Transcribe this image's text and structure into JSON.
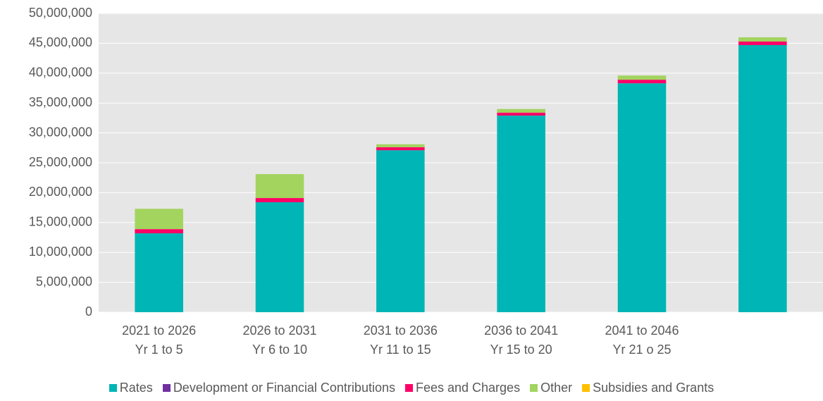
{
  "chart_data": {
    "type": "stacked_bar",
    "categories": [
      "2021 to 2026\nYr 1 to 5",
      "2026 to 2031\nYr 6 to 10",
      "2031 to 2036\nYr 11 to 15",
      "2036 to 2041\nYr 15 to 20",
      "2041 to 2046\nYr 21 o 25",
      null
    ],
    "series": [
      {
        "name": "Rates",
        "color": "#00b5b5",
        "values": [
          13200000,
          18400000,
          27100000,
          32900000,
          38300000,
          44700000
        ]
      },
      {
        "name": "Development or Financial Contributions",
        "color": "#7030a0",
        "values": [
          0,
          0,
          0,
          0,
          0,
          0
        ]
      },
      {
        "name": "Fees and Charges",
        "color": "#ff0066",
        "values": [
          700000,
          700000,
          500000,
          500000,
          600000,
          600000
        ]
      },
      {
        "name": "Other",
        "color": "#a2d45e",
        "values": [
          3400000,
          4000000,
          500000,
          600000,
          700000,
          700000
        ]
      },
      {
        "name": "Subsidies and Grants",
        "color": "#ffc000",
        "values": [
          0,
          0,
          0,
          0,
          0,
          0
        ]
      }
    ],
    "ylim": [
      0,
      50000000
    ],
    "yticks": [
      0,
      {
        "value": 5000000,
        "label": "5,000,000"
      },
      {
        "value": 10000000,
        "label": "10,000,000"
      },
      {
        "value": 15000000,
        "label": "15,000,000"
      },
      {
        "value": 20000000,
        "label": "20,000,000"
      },
      {
        "value": 25000000,
        "label": "25,000,000"
      },
      {
        "value": 30000000,
        "label": "30,000,000"
      },
      {
        "value": 35000000,
        "label": "35,000,000"
      },
      {
        "value": 40000000,
        "label": "40,000,000"
      },
      {
        "value": 45000000,
        "label": "45,000,000"
      },
      {
        "value": 50000000,
        "label": "50,000,000"
      }
    ],
    "grid": true,
    "legend": "bottom"
  }
}
